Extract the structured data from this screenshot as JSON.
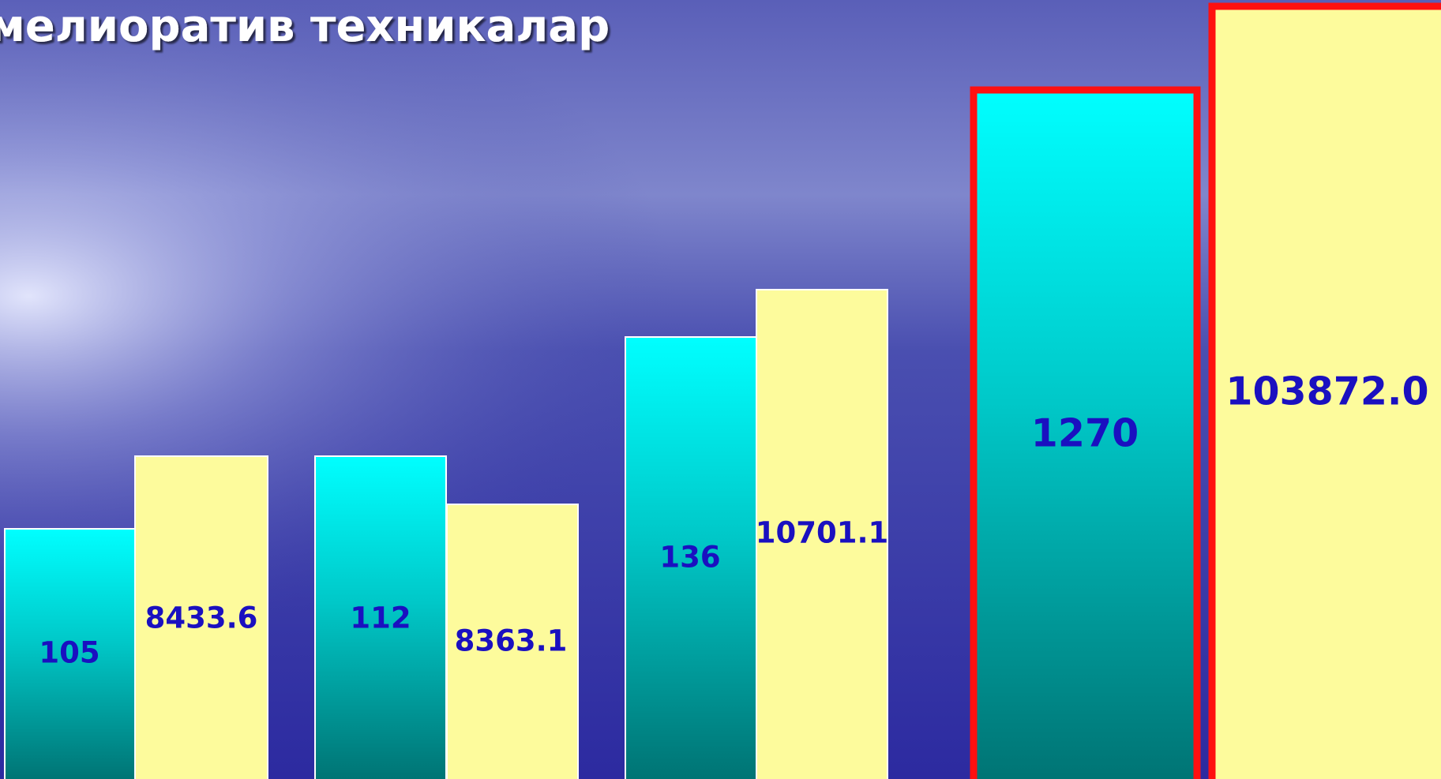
{
  "title": "мелиоратив техникалар",
  "groups": [
    {
      "values": [
        "105",
        "8433.6"
      ]
    },
    {
      "values": [
        "112",
        "8363.1"
      ]
    },
    {
      "values": [
        "136",
        "10701.1"
      ]
    },
    {
      "values": [
        "1270",
        "103872.0"
      ]
    }
  ]
}
